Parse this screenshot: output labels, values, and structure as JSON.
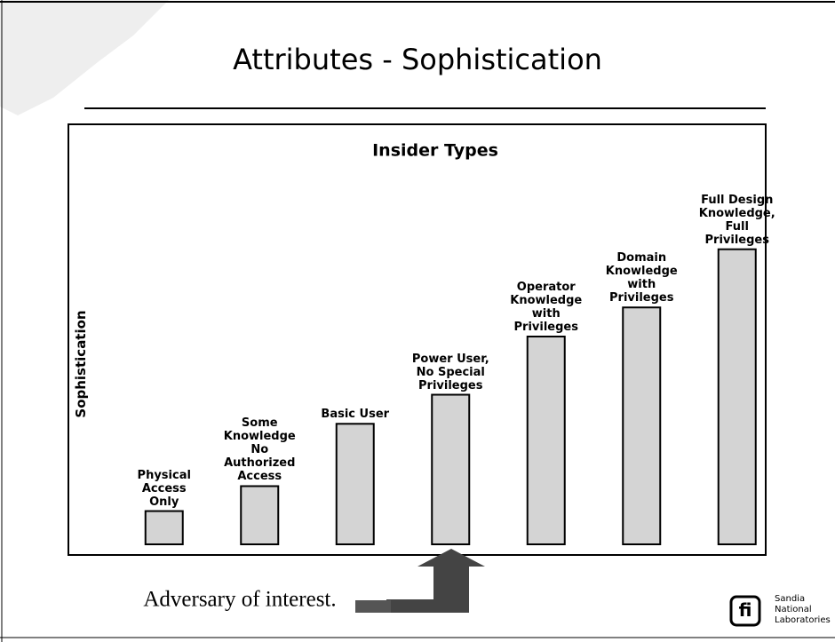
{
  "slide": {
    "title": "Attributes - Sophistication",
    "annotation": "Adversary of interest.",
    "logo": [
      "Sandia",
      "National",
      "Laboratories"
    ]
  },
  "chart_data": {
    "type": "bar",
    "title": "Insider Types",
    "y_label": "Sophistication",
    "categories": [
      "Physical Access Only",
      "Some Knowledge No Authorized Access",
      "Basic User",
      "Power User, No Special Privileges",
      "Operator Knowledge with Privileges",
      "Domain Knowledge with Privileges",
      "Full Design Knowledge, Full Privileges"
    ],
    "values": [
      0.8,
      1.4,
      2.9,
      3.6,
      5.0,
      5.7,
      7.1
    ],
    "color": "#d4d4d4",
    "ylim": [
      0,
      10
    ]
  }
}
